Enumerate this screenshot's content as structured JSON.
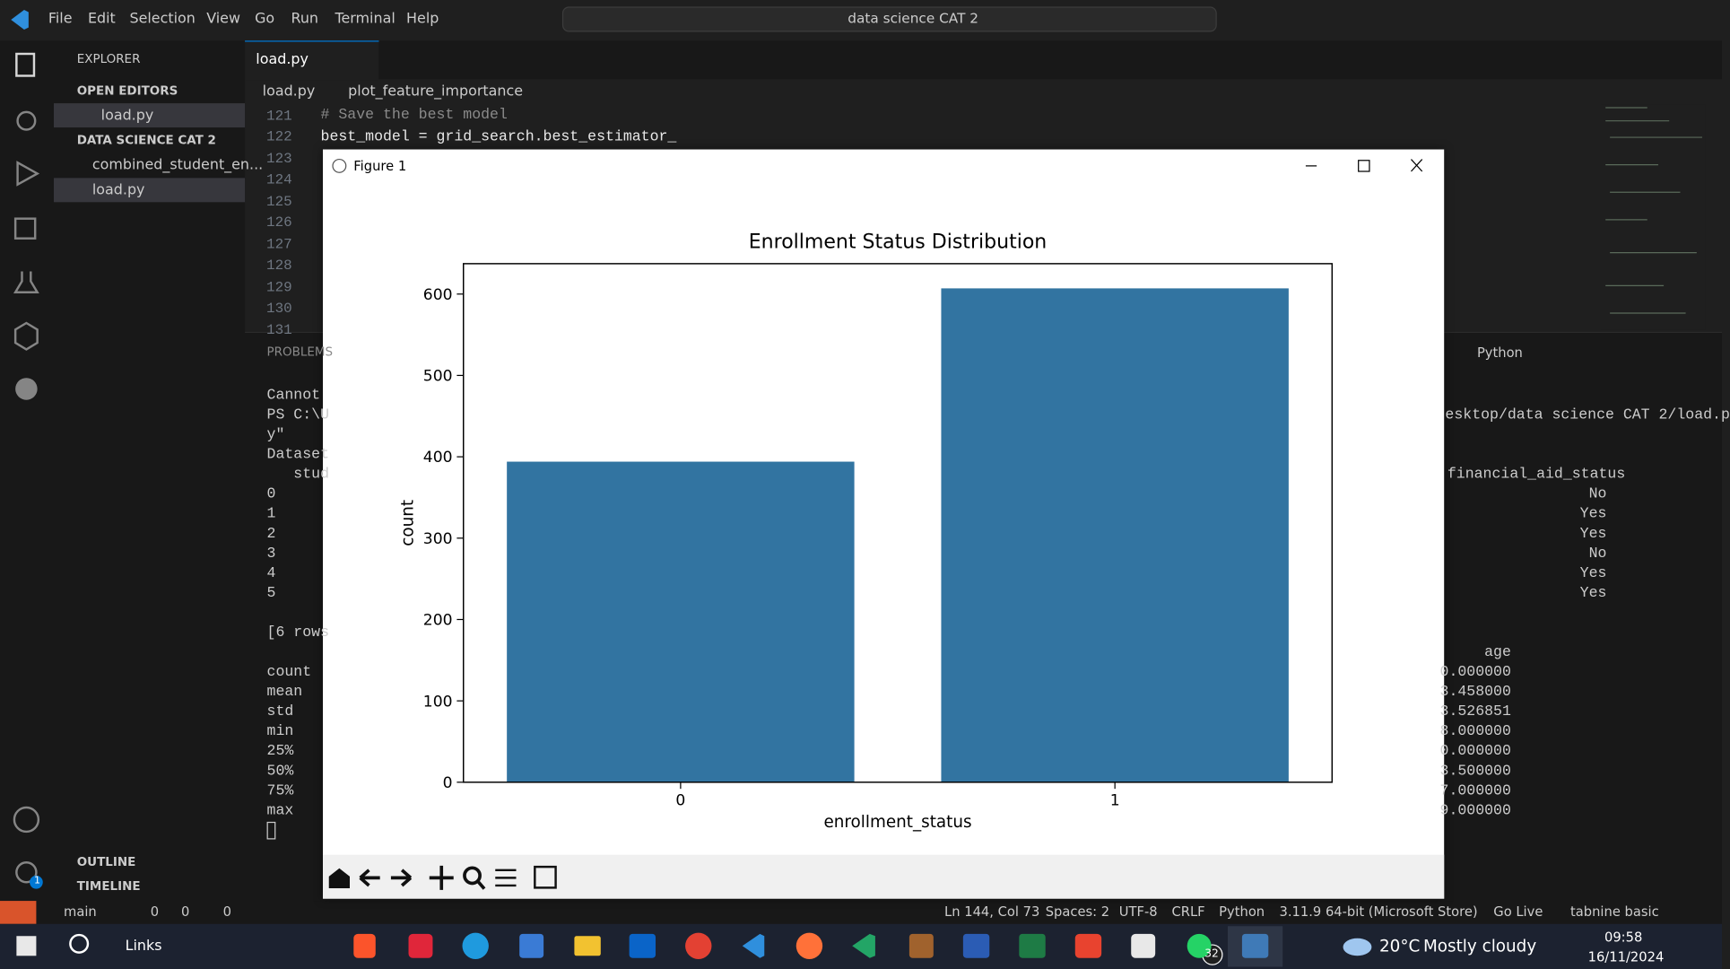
{
  "title_bar": {
    "menu": [
      "File",
      "Edit",
      "Selection",
      "View",
      "Go",
      "Run",
      "Terminal",
      "Help"
    ],
    "search": "data science CAT 2"
  },
  "explorer": {
    "header": "EXPLORER",
    "open_editors": "OPEN EDITORS",
    "open_files": [
      "load.py"
    ],
    "folder": "DATA SCIENCE CAT 2",
    "files": [
      "combined_student_en...",
      "load.py"
    ],
    "outline": "OUTLINE",
    "timeline": "TIMELINE",
    "settings_badge": "1"
  },
  "editor": {
    "tab": "load.py",
    "breadcrumb": [
      "load.py",
      "plot_feature_importance"
    ],
    "line_numbers": [
      121,
      122,
      123,
      124,
      125,
      126,
      127,
      128,
      129,
      130,
      131
    ],
    "code": [
      "# Save the best model",
      "best_model = grid_search.best_estimator_"
    ]
  },
  "panel": {
    "tab": "PROBLEMS",
    "shell": "Python",
    "left_lines": [
      "Cannot",
      "PS C:\\U",
      "y\"",
      "Dataset",
      "   stud",
      "0",
      "1",
      "2",
      "3",
      "4",
      "5",
      "[6 rows",
      "count",
      "mean",
      "std",
      "min",
      "25%",
      "50%",
      "75%",
      "max"
    ],
    "right_lines": [
      "esktop/data science CAT 2/load.p",
      "financial_aid_status",
      "No",
      "Yes",
      "Yes",
      "No",
      "Yes",
      "Yes",
      "age",
      "0.000000",
      "3.458000",
      "3.526851",
      "8.000000",
      "0.000000",
      "3.500000",
      "7.000000",
      "9.000000"
    ]
  },
  "status_bar": {
    "branch": "main",
    "errors": "0",
    "warnings": "0",
    "ports": "0",
    "position": "Ln 144, Col 73",
    "spaces": "Spaces: 2",
    "encoding": "UTF-8",
    "eol": "CRLF",
    "language": "Python",
    "interpreter": "3.11.9 64-bit (Microsoft Store)",
    "live": "Go Live",
    "tabnine": "tabnine basic"
  },
  "taskbar": {
    "links": "Links",
    "whatsapp_badge": "32",
    "weather_temp": "20°C",
    "weather_desc": "Mostly cloudy",
    "time": "09:58",
    "date": "16/11/2024"
  },
  "figure": {
    "window_title": "Figure 1"
  },
  "chart_data": {
    "type": "bar",
    "title": "Enrollment Status Distribution",
    "xlabel": "enrollment_status",
    "ylabel": "count",
    "categories": [
      "0",
      "1"
    ],
    "values": [
      394,
      607
    ],
    "color": "#3274a1",
    "ylim": [
      0,
      637.35
    ],
    "yticks": [
      0,
      100,
      200,
      300,
      400,
      500,
      600
    ]
  }
}
